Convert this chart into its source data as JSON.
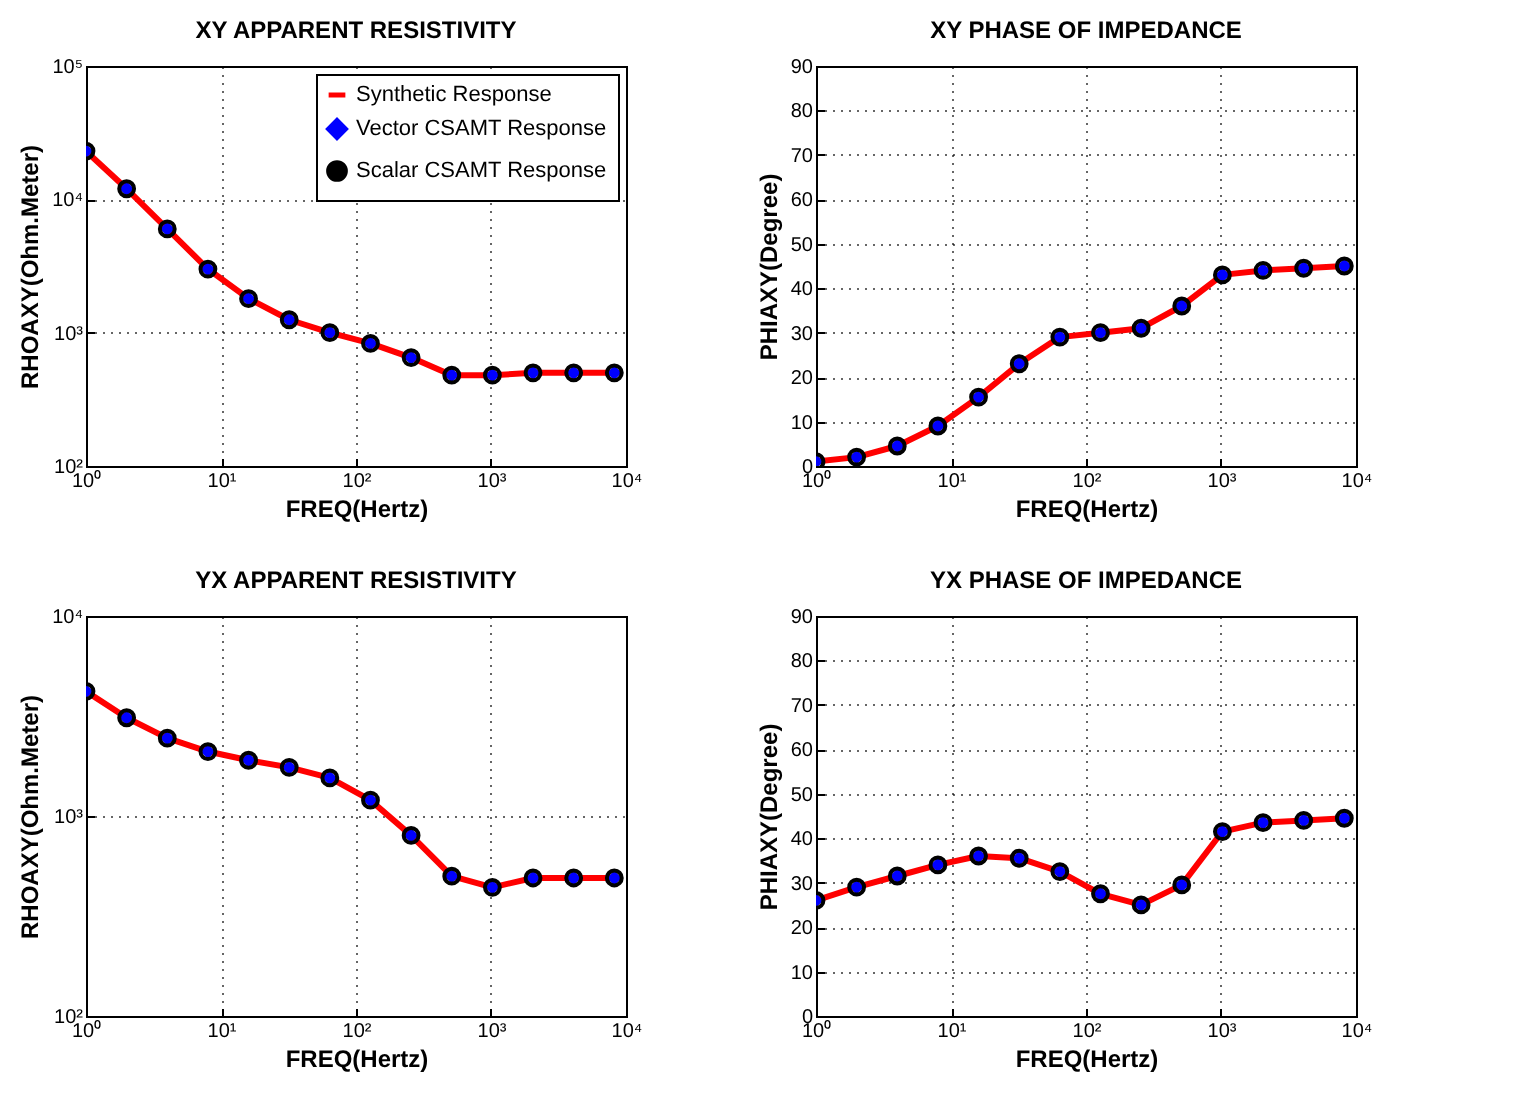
{
  "chart_data": [
    {
      "type": "line",
      "title": "XY APPARENT RESISTIVITY",
      "xlabel": "FREQ(Hertz)",
      "ylabel": "RHOAXY(Ohm.Meter)",
      "log": "xy",
      "grid": true,
      "legend": "top right",
      "x": [
        1,
        2,
        4,
        8,
        16,
        32,
        64,
        128,
        256,
        512,
        1024,
        2048,
        4096,
        8192
      ],
      "xlim": [
        1,
        10000
      ],
      "xticks": [
        {
          "value": 1,
          "label": "10⁰"
        },
        {
          "value": 10,
          "label": "10¹"
        },
        {
          "value": 100,
          "label": "10²"
        },
        {
          "value": 1000,
          "label": "10³"
        },
        {
          "value": 10000,
          "label": "10⁴"
        }
      ],
      "ylim": [
        100,
        100000
      ],
      "yticks": [
        {
          "value": 100,
          "label": "10²"
        },
        {
          "value": 1000,
          "label": "10³"
        },
        {
          "value": 10000,
          "label": "10⁴"
        },
        {
          "value": 100000,
          "label": "10⁵"
        }
      ],
      "series": [
        {
          "name": "Synthetic Response",
          "type": "line",
          "color": "#ff0000",
          "values": [
            23000,
            12000,
            6000,
            3000,
            1800,
            1250,
            1000,
            830,
            650,
            480,
            480,
            500,
            500,
            500
          ]
        },
        {
          "name": "Vector CSAMT Response",
          "type": "scatter",
          "marker": "diamond",
          "color": "#0000ff",
          "values": [
            23000,
            12000,
            6000,
            3000,
            1800,
            1250,
            1000,
            830,
            650,
            480,
            480,
            500,
            500,
            500
          ]
        },
        {
          "name": "Scalar CSAMT Response",
          "type": "scatter",
          "marker": "circle",
          "color": "#000000",
          "values": [
            23000,
            12000,
            6000,
            3000,
            1800,
            1250,
            1000,
            830,
            650,
            480,
            480,
            500,
            500,
            500
          ]
        }
      ]
    },
    {
      "type": "line",
      "title": "XY PHASE OF IMPEDANCE",
      "xlabel": "FREQ(Hertz)",
      "ylabel": "PHIAXY(Degree)",
      "log": "x",
      "grid": true,
      "x": [
        1,
        2,
        4,
        8,
        16,
        32,
        64,
        128,
        256,
        512,
        1024,
        2048,
        4096,
        8192
      ],
      "xlim": [
        1,
        10000
      ],
      "xticks": [
        {
          "value": 1,
          "label": "10⁰"
        },
        {
          "value": 10,
          "label": "10¹"
        },
        {
          "value": 100,
          "label": "10²"
        },
        {
          "value": 1000,
          "label": "10³"
        },
        {
          "value": 10000,
          "label": "10⁴"
        }
      ],
      "ylim": [
        0,
        90
      ],
      "yticks": [
        0,
        10,
        20,
        30,
        40,
        50,
        60,
        70,
        80,
        90
      ],
      "series": [
        {
          "type": "line",
          "color": "#ff0000",
          "values": [
            1,
            2,
            4.5,
            9,
            15.5,
            23,
            29,
            30,
            31,
            36,
            43,
            44,
            44.5,
            45
          ]
        },
        {
          "type": "scatter",
          "marker": "diamond",
          "color": "#0000ff",
          "values": [
            1,
            2,
            4.5,
            9,
            15.5,
            23,
            29,
            30,
            31,
            36,
            43,
            44,
            44.5,
            45
          ]
        },
        {
          "type": "scatter",
          "marker": "circle",
          "color": "#000000",
          "values": [
            1,
            2,
            4.5,
            9,
            15.5,
            23,
            29,
            30,
            31,
            36,
            43,
            44,
            44.5,
            45
          ]
        }
      ]
    },
    {
      "type": "line",
      "title": "YX APPARENT RESISTIVITY",
      "xlabel": "FREQ(Hertz)",
      "ylabel": "RHOAXY(Ohm.Meter)",
      "log": "xy",
      "grid": true,
      "x": [
        1,
        2,
        4,
        8,
        16,
        32,
        64,
        128,
        256,
        512,
        1024,
        2048,
        4096,
        8192
      ],
      "xlim": [
        1,
        10000
      ],
      "xticks": [
        {
          "value": 1,
          "label": "10⁰"
        },
        {
          "value": 10,
          "label": "10¹"
        },
        {
          "value": 100,
          "label": "10²"
        },
        {
          "value": 1000,
          "label": "10³"
        },
        {
          "value": 10000,
          "label": "10⁴"
        }
      ],
      "ylim": [
        100,
        10000
      ],
      "yticks": [
        {
          "value": 100,
          "label": "10²"
        },
        {
          "value": 1000,
          "label": "10³"
        },
        {
          "value": 10000,
          "label": "10⁴"
        }
      ],
      "series": [
        {
          "type": "line",
          "color": "#ff0000",
          "values": [
            4200,
            3100,
            2450,
            2100,
            1900,
            1750,
            1550,
            1200,
            800,
            500,
            440,
            490,
            490,
            490
          ]
        },
        {
          "type": "scatter",
          "marker": "diamond",
          "color": "#0000ff",
          "values": [
            4200,
            3100,
            2450,
            2100,
            1900,
            1750,
            1550,
            1200,
            800,
            500,
            440,
            490,
            490,
            490
          ]
        },
        {
          "type": "scatter",
          "marker": "circle",
          "color": "#000000",
          "values": [
            4200,
            3100,
            2450,
            2100,
            1900,
            1750,
            1550,
            1200,
            800,
            500,
            440,
            490,
            490,
            490
          ]
        }
      ]
    },
    {
      "type": "line",
      "title": "YX PHASE OF IMPEDANCE",
      "xlabel": "FREQ(Hertz)",
      "ylabel": "PHIAXY(Degree)",
      "log": "x",
      "grid": true,
      "x": [
        1,
        2,
        4,
        8,
        16,
        32,
        64,
        128,
        256,
        512,
        1024,
        2048,
        4096,
        8192
      ],
      "xlim": [
        1,
        10000
      ],
      "xticks": [
        {
          "value": 1,
          "label": "10⁰"
        },
        {
          "value": 10,
          "label": "10¹"
        },
        {
          "value": 100,
          "label": "10²"
        },
        {
          "value": 1000,
          "label": "10³"
        },
        {
          "value": 10000,
          "label": "10⁴"
        }
      ],
      "ylim": [
        0,
        90
      ],
      "yticks": [
        0,
        10,
        20,
        30,
        40,
        50,
        60,
        70,
        80,
        90
      ],
      "series": [
        {
          "type": "line",
          "color": "#ff0000",
          "values": [
            26,
            29,
            31.5,
            34,
            36,
            35.5,
            32.5,
            27.5,
            25,
            29.5,
            41.5,
            43.5,
            44,
            44.5
          ]
        },
        {
          "type": "scatter",
          "marker": "diamond",
          "color": "#0000ff",
          "values": [
            26,
            29,
            31.5,
            34,
            36,
            35.5,
            32.5,
            27.5,
            25,
            29.5,
            41.5,
            43.5,
            44,
            44.5
          ]
        },
        {
          "type": "scatter",
          "marker": "circle",
          "color": "#000000",
          "values": [
            26,
            29,
            31.5,
            34,
            36,
            35.5,
            32.5,
            27.5,
            25,
            29.5,
            41.5,
            43.5,
            44,
            44.5
          ]
        }
      ]
    }
  ]
}
